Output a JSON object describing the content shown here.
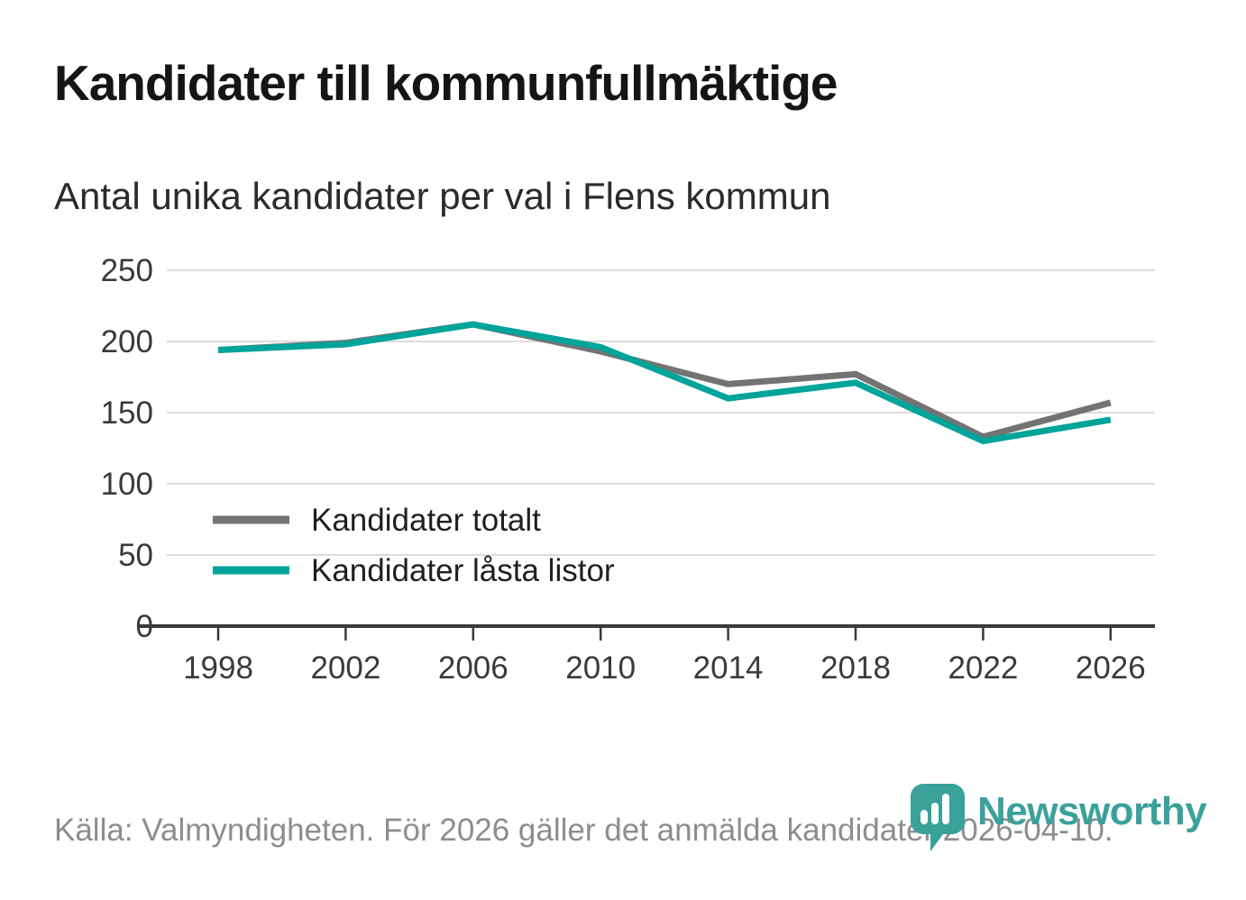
{
  "header": {
    "title": "Kandidater till kommunfullmäktige",
    "subtitle": "Antal unika kandidater per val i Flens kommun"
  },
  "chart_data": {
    "type": "line",
    "x": [
      1998,
      2002,
      2006,
      2010,
      2014,
      2018,
      2022,
      2026
    ],
    "series": [
      {
        "name": "Kandidater totalt",
        "color": "#737373",
        "values": [
          194,
          199,
          212,
          193,
          170,
          177,
          133,
          157
        ]
      },
      {
        "name": "Kandidater låsta listor",
        "color": "#00a49a",
        "values": [
          194,
          198,
          212,
          196,
          160,
          171,
          130,
          145
        ]
      }
    ],
    "ylim": [
      0,
      250
    ],
    "yticks": [
      0,
      50,
      100,
      150,
      200,
      250
    ],
    "grid": true,
    "legend_position": "inside-left",
    "xlabel": "",
    "ylabel": ""
  },
  "footer": {
    "source": "Källa: Valmyndigheten. För 2026 gäller det anmälda kandidater 2026-04-10.",
    "brand": "Newsworthy"
  },
  "colors": {
    "line_gray": "#737373",
    "line_teal": "#00a49a",
    "logo_teal": "#3aa19b",
    "gridline": "#dcdcdc",
    "axis": "#3a3a3a"
  }
}
